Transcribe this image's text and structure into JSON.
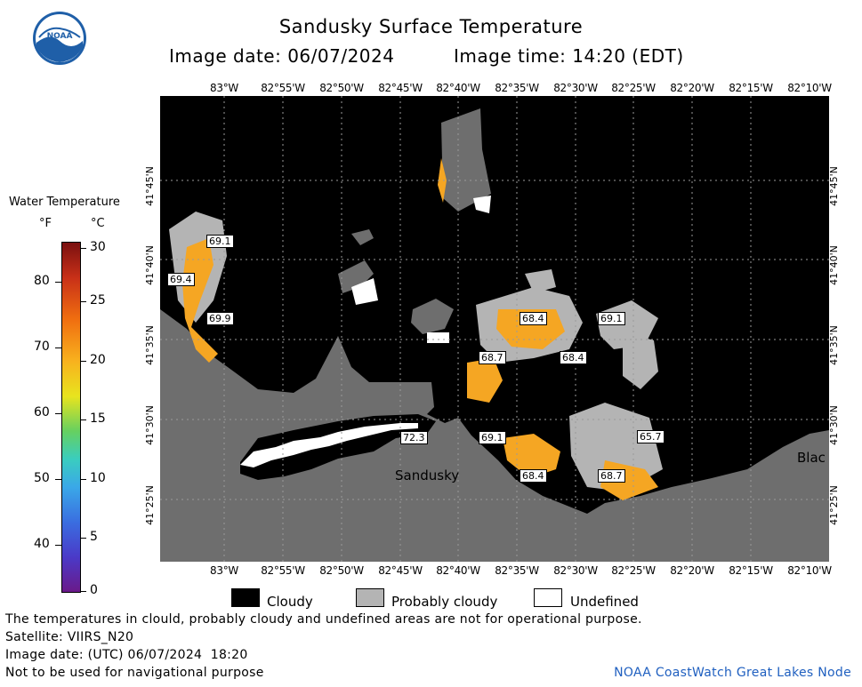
{
  "header": {
    "title": "Sandusky Surface Temperature",
    "image_date_label": "Image date: 06/07/2024",
    "image_time_label": "Image time: 14:20 (EDT)"
  },
  "logo": {
    "text": "NOAA"
  },
  "legend": {
    "title": "Water Temperature",
    "unit_f": "°F",
    "unit_c": "°C",
    "f_ticks": [
      "80",
      "70",
      "60",
      "50",
      "40"
    ],
    "c_ticks": [
      "30",
      "25",
      "20",
      "15",
      "10",
      "5",
      "0"
    ]
  },
  "axes": {
    "longitudes": [
      "83°W",
      "82°55'W",
      "82°50'W",
      "82°45'W",
      "82°40'W",
      "82°35'W",
      "82°30'W",
      "82°25'W",
      "82°20'W",
      "82°15'W",
      "82°10'W"
    ],
    "latitudes": [
      "41°45'N",
      "41°40'N",
      "41°35'N",
      "41°30'N",
      "41°25'N"
    ]
  },
  "map": {
    "temperature_labels": [
      "69.1",
      "69.4",
      "69.9",
      "68.4",
      "68.7",
      "68.4",
      "69.1",
      "72.3",
      "69.1",
      "68.4",
      "68.7",
      "65.7"
    ],
    "places": [
      "Sandusky",
      "Blac"
    ]
  },
  "key": {
    "cloudy": "Cloudy",
    "probably_cloudy": "Probably cloudy",
    "undefined": "Undefined"
  },
  "footer": {
    "note": "The temperatures in clould, probably cloudy and undefined areas are not for operational purpose.",
    "satellite": "Satellite: VIIRS_N20",
    "utc_date": "Image date: (UTC) 06/07/2024  18:20",
    "nav_warning": "Not to be used for navigational purpose",
    "credit": "NOAA CoastWatch Great Lakes Node"
  },
  "colors": {
    "cloudy": "#000000",
    "probably_cloudy": "#b4b4b4",
    "land": "#6e6e6e",
    "warm_water": "#f5a623",
    "credit_text": "#2060c0"
  }
}
